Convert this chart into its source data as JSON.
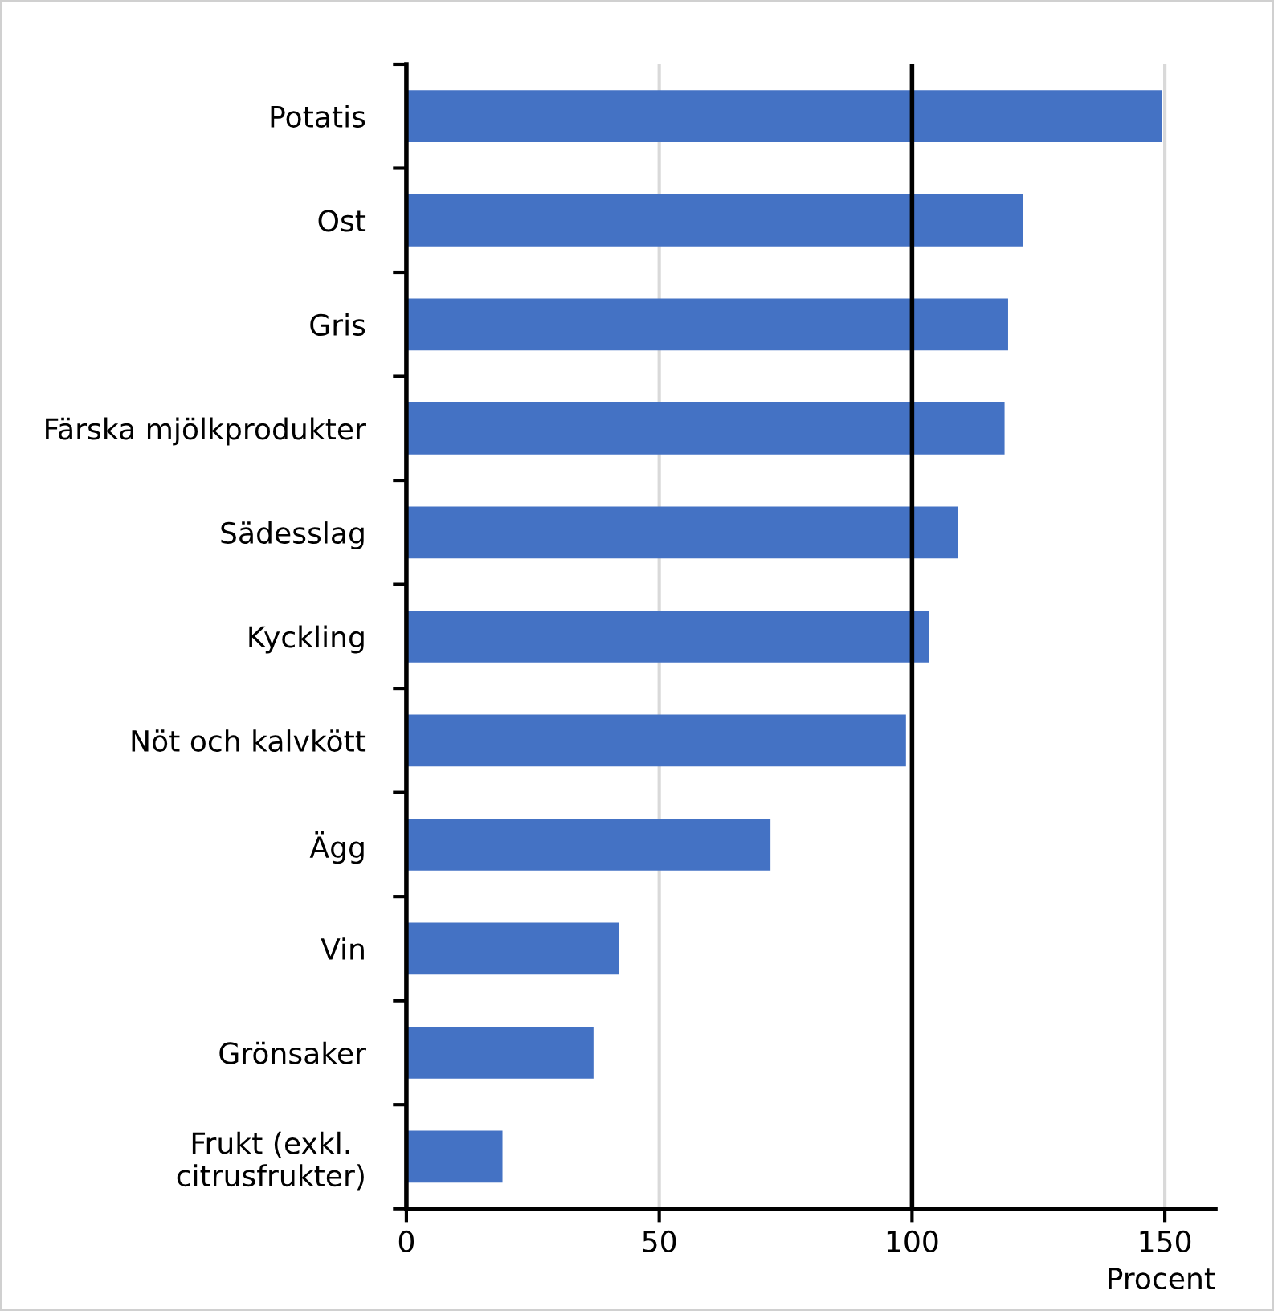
{
  "chart_data": {
    "type": "bar",
    "orientation": "horizontal",
    "categories": [
      "Potatis",
      "Ost",
      "Gris",
      "Färska mjölkprodukter",
      "Sädesslag",
      "Kyckling",
      "Nöt och kalvkött",
      "Ägg",
      "Vin",
      "Grönsaker",
      "Frukt (exkl.\ncitrusfrukter)"
    ],
    "values": [
      149.4,
      122,
      119,
      118.3,
      109,
      103.3,
      98.8,
      72,
      42,
      37,
      19
    ],
    "color": "#4472c4",
    "xlim": [
      0,
      160
    ],
    "xticks": [
      0,
      50,
      100,
      150
    ],
    "xlabel": "Procent",
    "grid": "x",
    "ref_lines": [
      {
        "axis": "x",
        "value": 100,
        "color": "#000000"
      }
    ]
  }
}
